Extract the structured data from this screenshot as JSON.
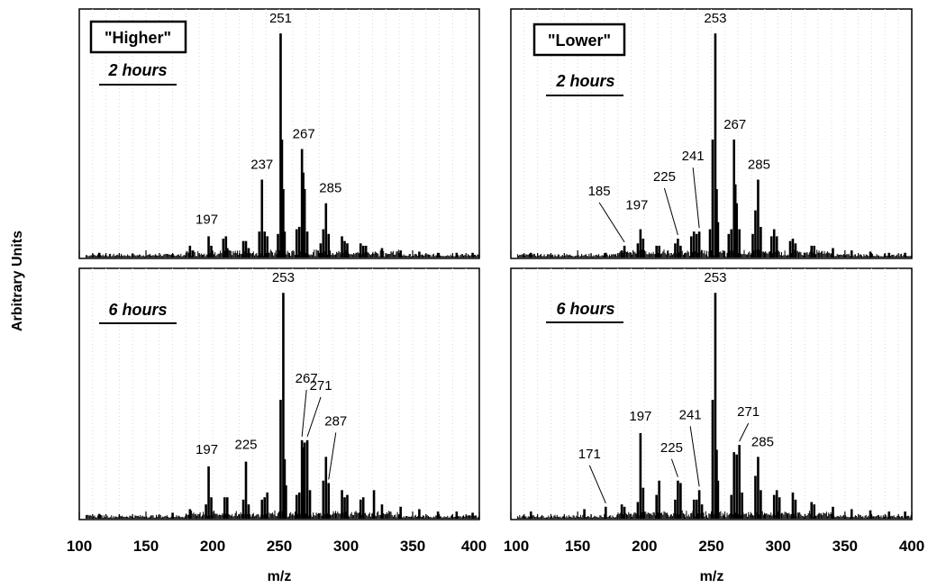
{
  "chart_data": {
    "type": "line",
    "xlabel": "m/z",
    "ylabel": "Arbitrary Units",
    "xlim": [
      100,
      400
    ],
    "xticks": [
      "100",
      "150",
      "200",
      "250",
      "300",
      "350",
      "400"
    ],
    "grid": "vertical dotted",
    "panels": [
      {
        "id": "higher-2h",
        "group": "\"Higher\"",
        "time": "2 hours",
        "peaks": [
          {
            "x": 115,
            "y": 0.02
          },
          {
            "x": 170,
            "y": 0.015
          },
          {
            "x": 183,
            "y": 0.05
          },
          {
            "x": 185,
            "y": 0.03
          },
          {
            "x": 197,
            "y": 0.09
          },
          {
            "x": 199,
            "y": 0.05
          },
          {
            "x": 208,
            "y": 0.08
          },
          {
            "x": 210,
            "y": 0.09
          },
          {
            "x": 211,
            "y": 0.04
          },
          {
            "x": 223,
            "y": 0.07
          },
          {
            "x": 225,
            "y": 0.07
          },
          {
            "x": 227,
            "y": 0.04
          },
          {
            "x": 235,
            "y": 0.11
          },
          {
            "x": 237,
            "y": 0.33
          },
          {
            "x": 239,
            "y": 0.11
          },
          {
            "x": 241,
            "y": 0.09
          },
          {
            "x": 249,
            "y": 0.1
          },
          {
            "x": 251,
            "y": 0.95
          },
          {
            "x": 252,
            "y": 0.5
          },
          {
            "x": 253,
            "y": 0.29
          },
          {
            "x": 254,
            "y": 0.11
          },
          {
            "x": 263,
            "y": 0.12
          },
          {
            "x": 265,
            "y": 0.13
          },
          {
            "x": 267,
            "y": 0.46
          },
          {
            "x": 268,
            "y": 0.36
          },
          {
            "x": 269,
            "y": 0.29
          },
          {
            "x": 271,
            "y": 0.11
          },
          {
            "x": 281,
            "y": 0.06
          },
          {
            "x": 283,
            "y": 0.12
          },
          {
            "x": 285,
            "y": 0.23
          },
          {
            "x": 287,
            "y": 0.1
          },
          {
            "x": 297,
            "y": 0.09
          },
          {
            "x": 299,
            "y": 0.07
          },
          {
            "x": 301,
            "y": 0.06
          },
          {
            "x": 311,
            "y": 0.06
          },
          {
            "x": 313,
            "y": 0.05
          },
          {
            "x": 315,
            "y": 0.05
          },
          {
            "x": 327,
            "y": 0.04
          },
          {
            "x": 341,
            "y": 0.03
          },
          {
            "x": 355,
            "y": 0.025
          },
          {
            "x": 369,
            "y": 0.02
          },
          {
            "x": 383,
            "y": 0.02
          },
          {
            "x": 395,
            "y": 0.02
          }
        ],
        "annotations": [
          {
            "text": "251",
            "x": 251
          },
          {
            "text": "267",
            "x": 267
          },
          {
            "text": "237",
            "x": 237
          },
          {
            "text": "285",
            "x": 285
          },
          {
            "text": "197",
            "x": 197
          }
        ]
      },
      {
        "id": "lower-2h",
        "group": "\"Lower\"",
        "time": "2 hours",
        "peaks": [
          {
            "x": 115,
            "y": 0.02
          },
          {
            "x": 171,
            "y": 0.02
          },
          {
            "x": 183,
            "y": 0.03
          },
          {
            "x": 185,
            "y": 0.05
          },
          {
            "x": 195,
            "y": 0.06
          },
          {
            "x": 197,
            "y": 0.12
          },
          {
            "x": 199,
            "y": 0.08
          },
          {
            "x": 209,
            "y": 0.05
          },
          {
            "x": 211,
            "y": 0.05
          },
          {
            "x": 223,
            "y": 0.06
          },
          {
            "x": 225,
            "y": 0.08
          },
          {
            "x": 227,
            "y": 0.05
          },
          {
            "x": 235,
            "y": 0.09
          },
          {
            "x": 237,
            "y": 0.11
          },
          {
            "x": 239,
            "y": 0.1
          },
          {
            "x": 241,
            "y": 0.11
          },
          {
            "x": 249,
            "y": 0.12
          },
          {
            "x": 251,
            "y": 0.5
          },
          {
            "x": 253,
            "y": 0.95
          },
          {
            "x": 254,
            "y": 0.29
          },
          {
            "x": 255,
            "y": 0.15
          },
          {
            "x": 263,
            "y": 0.1
          },
          {
            "x": 265,
            "y": 0.12
          },
          {
            "x": 267,
            "y": 0.5
          },
          {
            "x": 268,
            "y": 0.31
          },
          {
            "x": 269,
            "y": 0.23
          },
          {
            "x": 271,
            "y": 0.12
          },
          {
            "x": 281,
            "y": 0.1
          },
          {
            "x": 283,
            "y": 0.2
          },
          {
            "x": 285,
            "y": 0.33
          },
          {
            "x": 287,
            "y": 0.13
          },
          {
            "x": 295,
            "y": 0.09
          },
          {
            "x": 297,
            "y": 0.12
          },
          {
            "x": 299,
            "y": 0.09
          },
          {
            "x": 309,
            "y": 0.07
          },
          {
            "x": 311,
            "y": 0.08
          },
          {
            "x": 313,
            "y": 0.06
          },
          {
            "x": 325,
            "y": 0.05
          },
          {
            "x": 327,
            "y": 0.05
          },
          {
            "x": 341,
            "y": 0.04
          },
          {
            "x": 355,
            "y": 0.03
          },
          {
            "x": 369,
            "y": 0.025
          },
          {
            "x": 383,
            "y": 0.02
          },
          {
            "x": 395,
            "y": 0.02
          }
        ],
        "annotations": [
          {
            "text": "253",
            "x": 253
          },
          {
            "text": "267",
            "x": 267
          },
          {
            "text": "241",
            "x": 241
          },
          {
            "text": "285",
            "x": 285
          },
          {
            "text": "225",
            "x": 225
          },
          {
            "text": "185",
            "x": 185
          },
          {
            "text": "197",
            "x": 197
          }
        ]
      },
      {
        "id": "higher-6h",
        "group": "",
        "time": "6 hours",
        "peaks": [
          {
            "x": 115,
            "y": 0.02
          },
          {
            "x": 170,
            "y": 0.025
          },
          {
            "x": 183,
            "y": 0.04
          },
          {
            "x": 195,
            "y": 0.06
          },
          {
            "x": 197,
            "y": 0.22
          },
          {
            "x": 199,
            "y": 0.09
          },
          {
            "x": 209,
            "y": 0.09
          },
          {
            "x": 211,
            "y": 0.09
          },
          {
            "x": 223,
            "y": 0.08
          },
          {
            "x": 225,
            "y": 0.24
          },
          {
            "x": 227,
            "y": 0.06
          },
          {
            "x": 237,
            "y": 0.08
          },
          {
            "x": 239,
            "y": 0.09
          },
          {
            "x": 241,
            "y": 0.11
          },
          {
            "x": 251,
            "y": 0.5
          },
          {
            "x": 253,
            "y": 0.95
          },
          {
            "x": 254,
            "y": 0.25
          },
          {
            "x": 255,
            "y": 0.14
          },
          {
            "x": 263,
            "y": 0.1
          },
          {
            "x": 265,
            "y": 0.11
          },
          {
            "x": 267,
            "y": 0.33
          },
          {
            "x": 268,
            "y": 0.3
          },
          {
            "x": 269,
            "y": 0.32
          },
          {
            "x": 271,
            "y": 0.33
          },
          {
            "x": 273,
            "y": 0.12
          },
          {
            "x": 283,
            "y": 0.16
          },
          {
            "x": 285,
            "y": 0.26
          },
          {
            "x": 287,
            "y": 0.15
          },
          {
            "x": 297,
            "y": 0.12
          },
          {
            "x": 299,
            "y": 0.09
          },
          {
            "x": 301,
            "y": 0.1
          },
          {
            "x": 311,
            "y": 0.08
          },
          {
            "x": 313,
            "y": 0.09
          },
          {
            "x": 321,
            "y": 0.12
          },
          {
            "x": 327,
            "y": 0.06
          },
          {
            "x": 341,
            "y": 0.05
          },
          {
            "x": 355,
            "y": 0.04
          },
          {
            "x": 369,
            "y": 0.03
          },
          {
            "x": 383,
            "y": 0.03
          },
          {
            "x": 395,
            "y": 0.025
          }
        ],
        "annotations": [
          {
            "text": "253",
            "x": 253
          },
          {
            "text": "267",
            "x": 267
          },
          {
            "text": "271",
            "x": 271
          },
          {
            "text": "287",
            "x": 287
          },
          {
            "text": "197",
            "x": 197
          },
          {
            "text": "225",
            "x": 225
          }
        ]
      },
      {
        "id": "lower-6h",
        "group": "",
        "time": "6 hours",
        "peaks": [
          {
            "x": 115,
            "y": 0.03
          },
          {
            "x": 155,
            "y": 0.04
          },
          {
            "x": 171,
            "y": 0.05
          },
          {
            "x": 183,
            "y": 0.06
          },
          {
            "x": 185,
            "y": 0.05
          },
          {
            "x": 195,
            "y": 0.07
          },
          {
            "x": 197,
            "y": 0.36
          },
          {
            "x": 199,
            "y": 0.13
          },
          {
            "x": 209,
            "y": 0.1
          },
          {
            "x": 211,
            "y": 0.16
          },
          {
            "x": 223,
            "y": 0.08
          },
          {
            "x": 225,
            "y": 0.16
          },
          {
            "x": 227,
            "y": 0.15
          },
          {
            "x": 237,
            "y": 0.08
          },
          {
            "x": 239,
            "y": 0.08
          },
          {
            "x": 241,
            "y": 0.12
          },
          {
            "x": 243,
            "y": 0.06
          },
          {
            "x": 251,
            "y": 0.5
          },
          {
            "x": 253,
            "y": 0.95
          },
          {
            "x": 254,
            "y": 0.29
          },
          {
            "x": 255,
            "y": 0.16
          },
          {
            "x": 265,
            "y": 0.1
          },
          {
            "x": 267,
            "y": 0.28
          },
          {
            "x": 269,
            "y": 0.27
          },
          {
            "x": 271,
            "y": 0.31
          },
          {
            "x": 273,
            "y": 0.11
          },
          {
            "x": 283,
            "y": 0.18
          },
          {
            "x": 285,
            "y": 0.26
          },
          {
            "x": 287,
            "y": 0.12
          },
          {
            "x": 297,
            "y": 0.1
          },
          {
            "x": 299,
            "y": 0.12
          },
          {
            "x": 301,
            "y": 0.09
          },
          {
            "x": 311,
            "y": 0.11
          },
          {
            "x": 313,
            "y": 0.08
          },
          {
            "x": 325,
            "y": 0.07
          },
          {
            "x": 327,
            "y": 0.06
          },
          {
            "x": 341,
            "y": 0.05
          },
          {
            "x": 355,
            "y": 0.04
          },
          {
            "x": 369,
            "y": 0.035
          },
          {
            "x": 383,
            "y": 0.03
          },
          {
            "x": 395,
            "y": 0.03
          }
        ],
        "annotations": [
          {
            "text": "253",
            "x": 253
          },
          {
            "text": "271",
            "x": 271
          },
          {
            "text": "285",
            "x": 285
          },
          {
            "text": "241",
            "x": 241
          },
          {
            "text": "197",
            "x": 197
          },
          {
            "text": "225",
            "x": 225
          },
          {
            "text": "171",
            "x": 171
          }
        ]
      }
    ]
  }
}
